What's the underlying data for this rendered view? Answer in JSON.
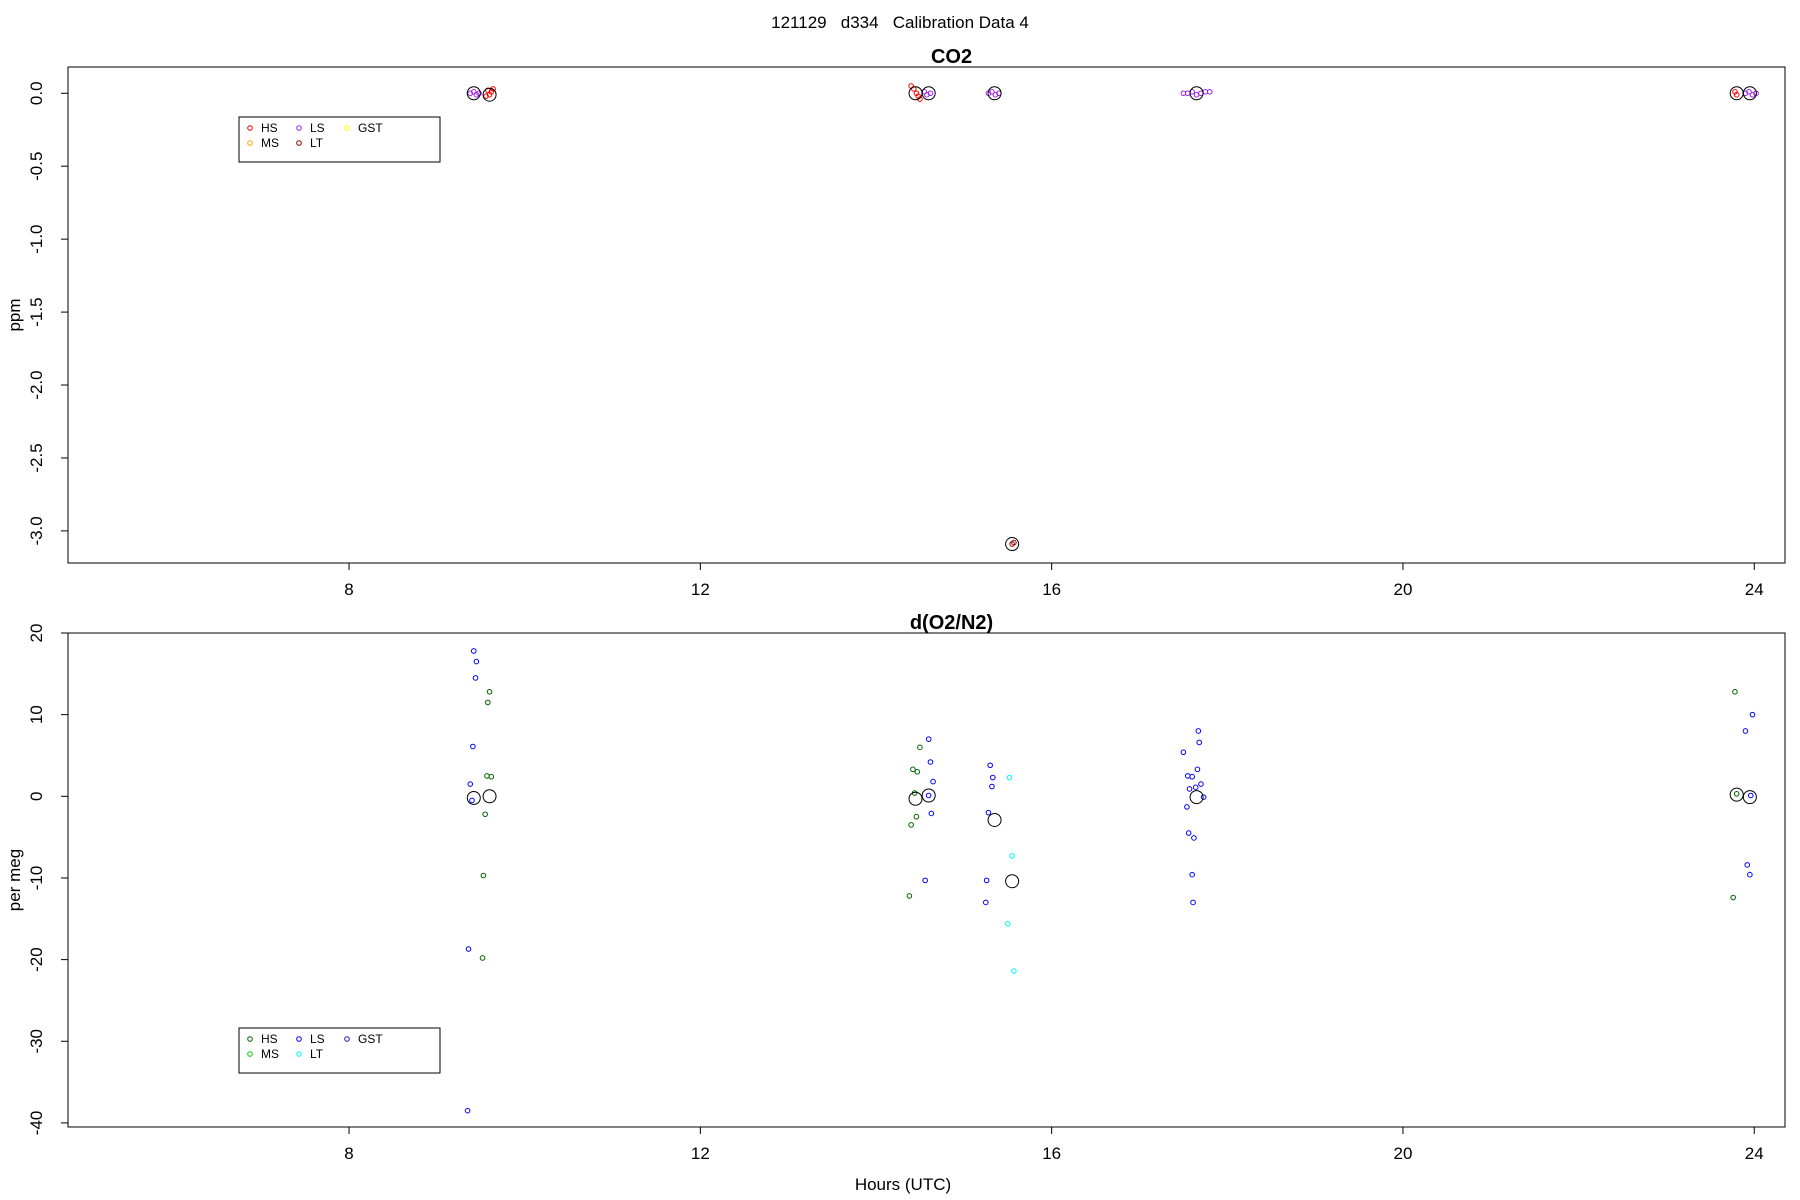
{
  "figure": {
    "suptitle": "121129   d334   Calibration Data 4",
    "xlabel": "Hours (UTC)"
  },
  "chart_data": [
    {
      "type": "scatter",
      "title": "CO2",
      "xlabel": "",
      "ylabel": "ppm",
      "xlim": [
        4.8,
        24.35
      ],
      "ylim": [
        -3.22,
        0.18
      ],
      "xticks": [
        "8",
        "12",
        "16",
        "20",
        "24"
      ],
      "yticks": [
        "0.0",
        "-0.5",
        "-1.0",
        "-1.5",
        "-2.0",
        "-2.5",
        "-3.0"
      ],
      "legend": {
        "position": "top-left",
        "entries": [
          {
            "label": "HS",
            "color": "#ff0000"
          },
          {
            "label": "MS",
            "color": "#ffa500"
          },
          {
            "label": "LS",
            "color": "#a020f0"
          },
          {
            "label": "LT",
            "color": "#8b0000"
          },
          {
            "label": "GST",
            "color": "#ffff00"
          }
        ]
      },
      "series": [
        {
          "name": "HS",
          "color": "#ff0000",
          "points": [
            [
              9.58,
              0.02
            ],
            [
              9.6,
              -0.01
            ],
            [
              9.62,
              0.01
            ],
            [
              9.56,
              -0.02
            ],
            [
              9.64,
              0.03
            ],
            [
              14.4,
              0.05
            ],
            [
              14.43,
              0.03
            ],
            [
              14.46,
              0.0
            ],
            [
              14.48,
              -0.02
            ],
            [
              14.5,
              -0.04
            ],
            [
              23.78,
              0.01
            ],
            [
              23.8,
              -0.01
            ]
          ]
        },
        {
          "name": "MS",
          "color": "#ffa500",
          "points": []
        },
        {
          "name": "LS",
          "color": "#a020f0",
          "points": [
            [
              9.38,
              0.0
            ],
            [
              9.42,
              0.01
            ],
            [
              9.45,
              -0.01
            ],
            [
              9.48,
              0.0
            ],
            [
              14.55,
              0.01
            ],
            [
              14.58,
              -0.01
            ],
            [
              14.62,
              0.0
            ],
            [
              15.28,
              0.0
            ],
            [
              15.32,
              0.01
            ],
            [
              15.36,
              -0.01
            ],
            [
              15.4,
              0.0
            ],
            [
              17.5,
              0.0
            ],
            [
              17.55,
              0.0
            ],
            [
              17.6,
              0.01
            ],
            [
              17.65,
              -0.01
            ],
            [
              17.7,
              0.0
            ],
            [
              17.75,
              0.01
            ],
            [
              17.8,
              0.01
            ],
            [
              23.9,
              0.0
            ],
            [
              23.94,
              0.01
            ],
            [
              23.98,
              -0.01
            ],
            [
              24.02,
              0.0
            ]
          ]
        },
        {
          "name": "LT",
          "color": "#8b0000",
          "points": [
            [
              15.55,
              -3.09
            ],
            [
              15.57,
              -3.08
            ]
          ]
        },
        {
          "name": "GST",
          "color": "#ffff00",
          "points": []
        }
      ],
      "means": [
        [
          9.42,
          0.0
        ],
        [
          9.6,
          -0.01
        ],
        [
          14.45,
          0.0
        ],
        [
          14.6,
          0.0
        ],
        [
          15.35,
          0.0
        ],
        [
          15.55,
          -3.09
        ],
        [
          17.65,
          0.0
        ],
        [
          23.8,
          0.0
        ],
        [
          23.95,
          0.0
        ]
      ]
    },
    {
      "type": "scatter",
      "title": "d(O2/N2)",
      "xlabel": "Hours (UTC)",
      "ylabel": "per meg",
      "xlim": [
        4.8,
        24.35
      ],
      "ylim": [
        -40.5,
        20
      ],
      "xticks": [
        "8",
        "12",
        "16",
        "20",
        "24"
      ],
      "yticks": [
        "20",
        "10",
        "0",
        "-10",
        "-20",
        "-30",
        "-40"
      ],
      "legend": {
        "position": "bottom-left",
        "entries": [
          {
            "label": "HS",
            "color": "#006400"
          },
          {
            "label": "MS",
            "color": "#00cc00"
          },
          {
            "label": "LS",
            "color": "#0000ff"
          },
          {
            "label": "LT",
            "color": "#00ffff"
          },
          {
            "label": "GST",
            "color": "#1e1eb4"
          }
        ]
      },
      "series": [
        {
          "name": "HS",
          "color": "#006400",
          "points": [
            [
              9.6,
              12.8
            ],
            [
              9.58,
              11.5
            ],
            [
              9.57,
              2.5
            ],
            [
              9.62,
              2.4
            ],
            [
              9.55,
              -2.2
            ],
            [
              9.53,
              -9.7
            ],
            [
              9.52,
              -19.8
            ],
            [
              14.5,
              6.0
            ],
            [
              14.42,
              3.3
            ],
            [
              14.47,
              3.0
            ],
            [
              14.44,
              0.4
            ],
            [
              14.46,
              -2.5
            ],
            [
              14.4,
              -3.5
            ],
            [
              14.38,
              -12.2
            ],
            [
              23.78,
              12.8
            ],
            [
              23.8,
              0.3
            ],
            [
              23.76,
              -12.4
            ]
          ]
        },
        {
          "name": "MS",
          "color": "#00cc00",
          "points": []
        },
        {
          "name": "LS",
          "color": "#0000ff",
          "points": [
            [
              9.42,
              17.8
            ],
            [
              9.45,
              16.5
            ],
            [
              9.44,
              14.5
            ],
            [
              9.41,
              6.1
            ],
            [
              9.38,
              1.5
            ],
            [
              9.4,
              -0.5
            ],
            [
              9.36,
              -18.7
            ],
            [
              9.35,
              -38.5
            ],
            [
              14.6,
              7.0
            ],
            [
              14.62,
              4.2
            ],
            [
              14.65,
              1.8
            ],
            [
              14.6,
              0.1
            ],
            [
              14.63,
              -2.1
            ],
            [
              14.56,
              -10.3
            ],
            [
              15.3,
              3.8
            ],
            [
              15.33,
              2.3
            ],
            [
              15.32,
              1.2
            ],
            [
              15.28,
              -2.0
            ],
            [
              15.26,
              -10.3
            ],
            [
              15.25,
              -13.0
            ],
            [
              17.5,
              5.4
            ],
            [
              17.55,
              2.5
            ],
            [
              17.57,
              0.9
            ],
            [
              17.6,
              2.4
            ],
            [
              17.64,
              1.1
            ],
            [
              17.66,
              3.3
            ],
            [
              17.7,
              1.5
            ],
            [
              17.73,
              -0.1
            ],
            [
              17.68,
              6.6
            ],
            [
              17.67,
              8.0
            ],
            [
              17.54,
              -1.3
            ],
            [
              17.56,
              -4.5
            ],
            [
              17.62,
              -5.1
            ],
            [
              17.6,
              -9.6
            ],
            [
              17.61,
              -13.0
            ],
            [
              23.9,
              8.0
            ],
            [
              23.98,
              10.0
            ],
            [
              23.92,
              -8.4
            ],
            [
              23.95,
              -9.6
            ],
            [
              23.96,
              0.1
            ]
          ]
        },
        {
          "name": "LT",
          "color": "#00ffff",
          "points": [
            [
              15.52,
              2.3
            ],
            [
              15.55,
              -7.3
            ],
            [
              15.5,
              -15.6
            ],
            [
              15.57,
              -21.4
            ]
          ]
        },
        {
          "name": "GST",
          "color": "#1e1eb4",
          "points": []
        }
      ],
      "means": [
        [
          9.42,
          -0.2
        ],
        [
          9.6,
          0.0
        ],
        [
          14.45,
          -0.3
        ],
        [
          14.6,
          0.1
        ],
        [
          15.35,
          -2.9
        ],
        [
          15.55,
          -10.4
        ],
        [
          17.65,
          -0.1
        ],
        [
          23.8,
          0.2
        ],
        [
          23.95,
          -0.1
        ]
      ]
    }
  ]
}
